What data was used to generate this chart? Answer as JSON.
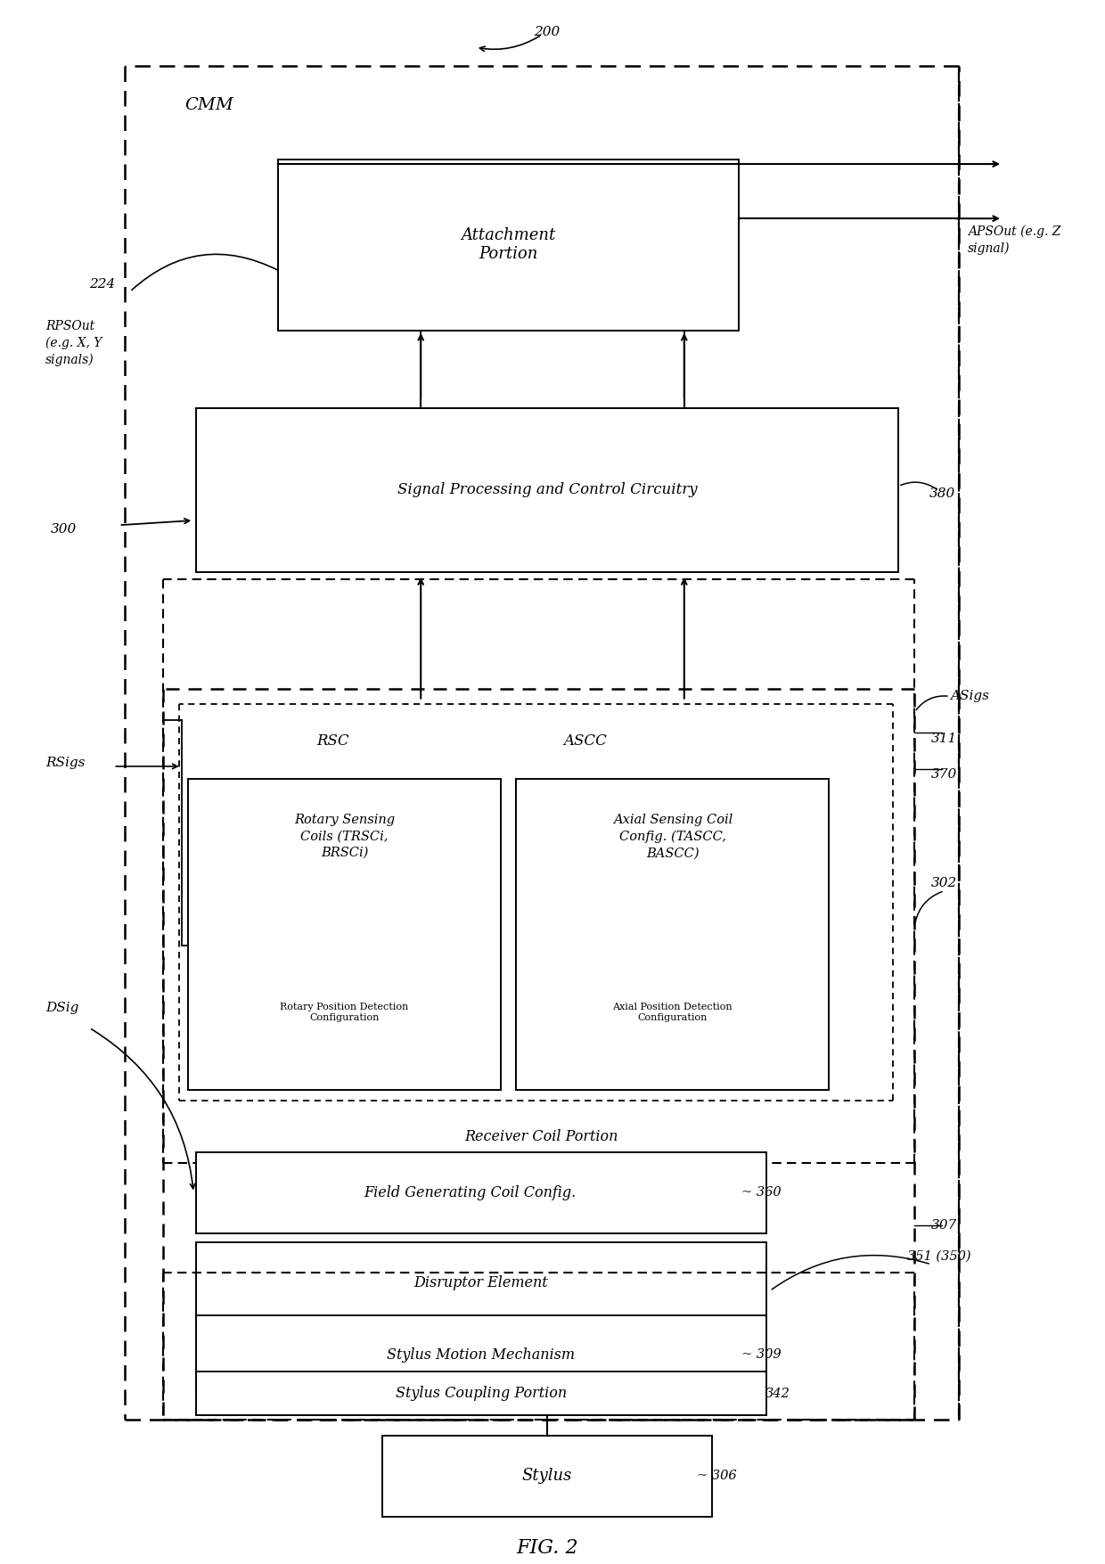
{
  "bg_color": "#ffffff",
  "fig_title": "FIG. 2",
  "ref_200": "200",
  "ref_224": "224",
  "ref_300": "300",
  "ref_380": "380",
  "ref_311": "311",
  "ref_370": "370",
  "ref_302": "302",
  "ref_360": "360",
  "ref_351": "351 (350)",
  "ref_307": "307",
  "ref_309": "309",
  "ref_342": "342",
  "ref_306": "306",
  "label_CMM": "CMM",
  "label_attachment": "Attachment\nPortion",
  "label_signal": "Signal Processing and Control Circuitry",
  "label_RSC": "RSC",
  "label_ASCC": "ASCC",
  "label_rotary": "Rotary Sensing\nCoils (TRSCi,\nBRSCi)",
  "label_rotary_sub": "Rotary Position Detection\nConfiguration",
  "label_axial": "Axial Sensing Coil\nConfig. (TASCC,\nBASCC)",
  "label_axial_sub": "Axial Position Detection\nConfiguration",
  "label_receiver": "Receiver Coil Portion",
  "label_field": "Field Generating Coil Config.",
  "label_disruptor": "Disruptor Element",
  "label_stylus_motion": "Stylus Motion Mechanism",
  "label_stylus_coupling": "Stylus Coupling Portion",
  "label_stylus": "Stylus",
  "label_RPSOut": "RPSOut\n(e.g. X, Y\nsignals)",
  "label_APSOut": "APSOut (e.g. Z\nsignal)",
  "label_RSigs": "RSigs",
  "label_ASigs": "ASigs",
  "label_DSig": "DSig"
}
